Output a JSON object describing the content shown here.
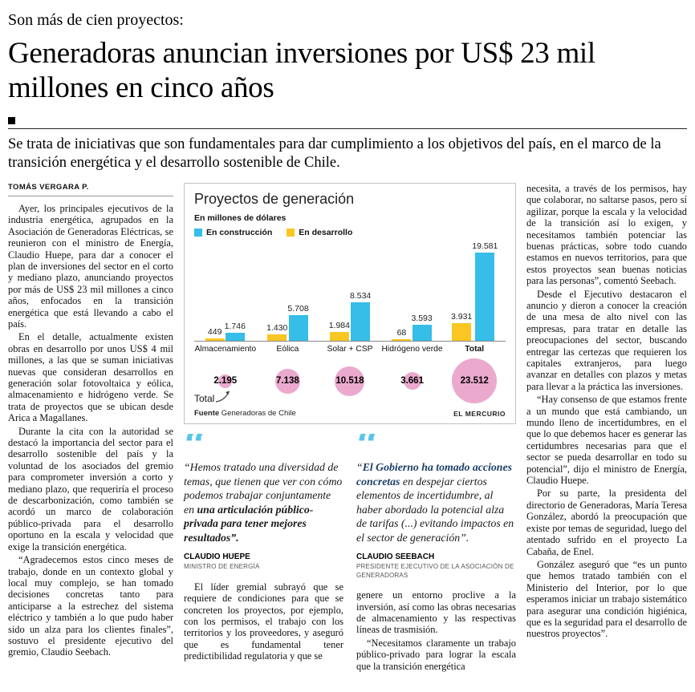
{
  "kicker": "Son más de cien proyectos:",
  "headline": "Generadoras anuncian inversiones por US$ 23 mil millones en cinco años",
  "deck": "Se trata de iniciativas que son fundamentales para dar cumplimiento a los objetivos del país, en el marco de la transición energética y el desarrollo sostenible de Chile.",
  "byline": "TOMÁS VERGARA P.",
  "left_column": {
    "paragraphs": [
      "Ayer, los principales ejecutivos de la industria energética, agrupados en la Asociación de Generadoras Eléctricas, se reunieron con el ministro de Energía, Claudio Huepe, para dar a conocer el plan de inversiones del sector en el corto y mediano plazo, anunciando proyectos por más de US$ 23 mil millones a cinco años, enfocados en la transición energética que está llevando a cabo el país.",
      "En el detalle, actualmente existen obras en desarrollo por unos US$ 4 mil millones, a las que se suman iniciativas nuevas que consideran desarrollos en generación solar fotovoltaica y eólica, almacenamiento e hidrógeno verde. Se trata de proyectos que se ubican desde Arica a Magallanes.",
      "Durante la cita con la autoridad se destacó la importancia del sector para el desarrollo sostenible del país y la voluntad de los asociados del gremio para comprometer inversión a corto y mediano plazo, que requeriría el proceso de descarbonización, como también se acordó un marco de colaboración público-privada para el desarrollo oportuno en la escala y velocidad que exige la transición energética.",
      "“Agradecemos estos cinco meses de trabajo, donde en un contexto global y local muy complejo, se han tomado decisiones concretas tanto para anticiparse a la estrechez del sistema eléctrico y también a lo que pudo haber sido un alza para los clientes finales”, sostuvo el presidente ejecutivo del gremio, Claudio Seebach."
    ]
  },
  "right_column": {
    "paragraphs": [
      "necesita, a través de los permisos, hay que colaborar, no saltarse pasos, pero sí agilizar, porque la escala y la velocidad de la transición así lo exigen, y necesitamos también potenciar las buenas prácticas, sobre todo cuando estamos en nuevos territorios, para que estos proyectos sean buenas noticias para las personas”, comentó Seebach.",
      "Desde el Ejecutivo destacaron el anuncio y dieron a conocer la creación de una mesa de alto nivel con las empresas, para tratar en detalle las preocupaciones del sector, buscando entregar las certezas que requieren los capitales extranjeros, para luego avanzar en detalles con plazos y metas para llevar a la práctica las inversiones.",
      "“Hay consenso de que estamos frente a un mundo que está cambiando, un mundo lleno de incertidumbres, en el que lo que debemos hacer es generar las certidumbres necesarias para que el sector se pueda desarrollar en todo su potencial”, dijo el ministro de Energía, Claudio Huepe.",
      "Por su parte, la presidenta del directorio de Generadoras, María Teresa González, abordó la preocupación que existe por temas de seguridad, luego del atentado sufrido en el proyecto La Cabaña, de Enel.",
      "González aseguró que “es un punto que hemos tratado también con el Ministerio del Interior, por lo que esperamos iniciar un trabajo sistemático para asegurar una condición higiénica, que es la seguridad para el desarrollo de nuestros proyectos”."
    ]
  },
  "mid_columns": {
    "col1": [
      "El líder gremial subrayó que se requiere de condiciones para que se concreten los proyectos, por ejemplo, con los permisos, el trabajo con los territorios y los proveedores, y aseguró que es fundamental tener predictibilidad regulatoria y que se"
    ],
    "col2": [
      "genere un entorno proclive a la inversión, así como las obras necesarias de almacenamiento y las respectivas líneas de trasmisión.",
      "“Necesitamos claramente un trabajo público-privado para lograr la escala que la transición energética"
    ]
  },
  "quotes": [
    {
      "segments": [
        {
          "text": "“Hemos tratado una diversidad de temas, que tienen que ver con cómo podemos trabajar conjuntamente en ",
          "bold": false,
          "navy": false
        },
        {
          "text": "una articulación público-privada para tener mejores resultados",
          "bold": true,
          "navy": false
        },
        {
          "text": "”.",
          "bold": true,
          "navy": false
        }
      ],
      "author": "CLAUDIO HUEPE",
      "role": "MINISTRO DE ENERGÍA"
    },
    {
      "segments": [
        {
          "text": "“",
          "bold": false,
          "navy": false
        },
        {
          "text": "El Gobierno ha tomado acciones concretas",
          "bold": true,
          "navy": true
        },
        {
          "text": " en despejar ciertos elementos de incertidumbre, al haber abordado la potencial alza de tarifas (...) evitando impactos en el sector de generación”.",
          "bold": false,
          "navy": false
        }
      ],
      "author": "CLAUDIO SEEBACH",
      "role": "PRESIDENTE EJECUTIVO DE LA ASOCIACIÓN DE GENERADORAS"
    }
  ],
  "chart_data": {
    "type": "bar",
    "title": "Proyectos de generación",
    "subtitle": "En millones de dólares",
    "legend": [
      {
        "label": "En construcción",
        "color": "#36bde8"
      },
      {
        "label": "En desarrollo",
        "color": "#f9c623"
      }
    ],
    "categories": [
      "Almacenamiento",
      "Eólica",
      "Solar + CSP",
      "Hidrógeno verde",
      "Total"
    ],
    "series": [
      {
        "name": "En desarrollo",
        "color": "#f9c623",
        "values": [
          449,
          1430,
          1984,
          68,
          3931
        ],
        "labels": [
          "449",
          "1.430",
          "1.984",
          "68",
          "3.931"
        ]
      },
      {
        "name": "En construcción",
        "color": "#36bde8",
        "values": [
          1746,
          5708,
          8534,
          3593,
          19581
        ],
        "labels": [
          "1.746",
          "5.708",
          "8.534",
          "3.593",
          "19.581"
        ]
      }
    ],
    "totals": {
      "label": "Total",
      "color": "#eba9ce",
      "values": [
        2195,
        7138,
        10518,
        3661,
        23512
      ],
      "labels": [
        "2.195",
        "7.138",
        "10.518",
        "3.661",
        "23.512"
      ]
    },
    "ylim": [
      0,
      19581
    ],
    "grid": false,
    "legend_position": "top-left",
    "source_label": "Fuente",
    "source": "Generadoras de Chile",
    "credit": "EL MERCURIO"
  }
}
